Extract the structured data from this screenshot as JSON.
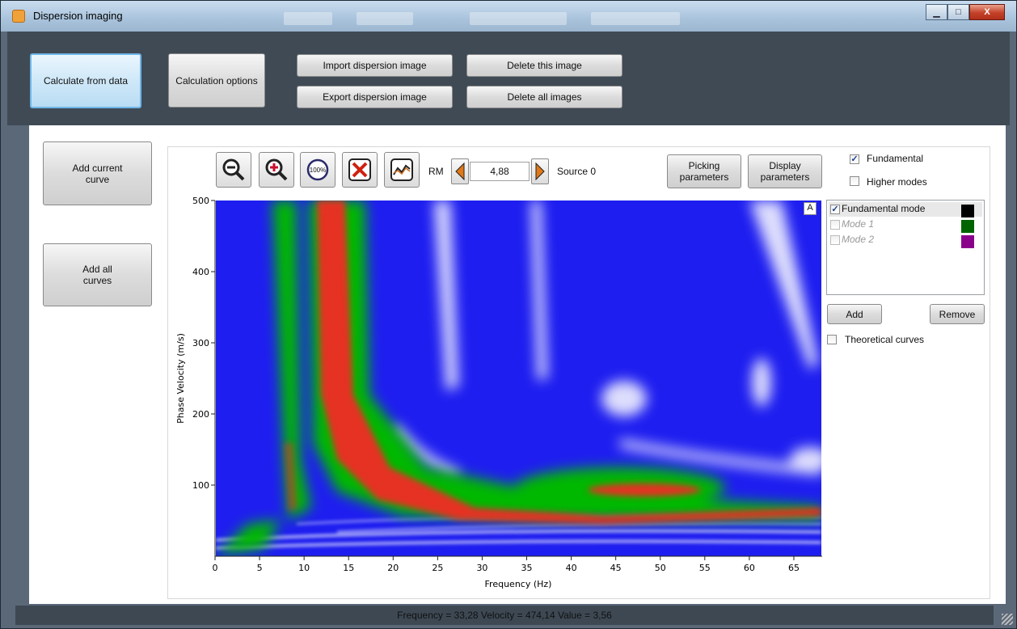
{
  "window": {
    "title": "Dispersion imaging",
    "controls": {
      "minimize": "▁",
      "maximize": "□",
      "close": "X"
    }
  },
  "toolbar": {
    "calculate": "Calculate from data",
    "calc_options": "Calculation options",
    "import": "Import dispersion image",
    "export": "Export dispersion image",
    "delete_this": "Delete this image",
    "delete_all": "Delete all images"
  },
  "left": {
    "add_current": "Add current curve",
    "add_all": "Add all curves"
  },
  "plot_toolbar": {
    "icons": [
      "zoom-out-icon",
      "zoom-in-icon",
      "zoom-100-icon",
      "clear-icon",
      "curve-icon"
    ],
    "icon_100_text": "100%",
    "rm_label": "RM",
    "rm_value": "4,88",
    "source_label": "Source 0",
    "picking": "Picking parameters",
    "display": "Display parameters"
  },
  "options": {
    "fundamental": {
      "label": "Fundamental",
      "checked": true
    },
    "higher_modes": {
      "label": "Higher modes",
      "checked": false
    },
    "theoretical": {
      "label": "Theoretical curves",
      "checked": false
    }
  },
  "modes_list": [
    {
      "label": "Fundamental mode",
      "checked": true,
      "color": "#000000"
    },
    {
      "label": "Mode 1",
      "checked": false,
      "color": "#006400"
    },
    {
      "label": "Mode 2",
      "checked": false,
      "color": "#8b008b"
    }
  ],
  "mode_buttons": {
    "add": "Add",
    "remove": "Remove"
  },
  "chart_data": {
    "type": "heatmap",
    "plot_label": "A",
    "xlabel": "Frequency (Hz)",
    "ylabel": "Phase Velocity (m/s)",
    "xlim": [
      0,
      68
    ],
    "ylim": [
      0,
      500
    ],
    "xticks": [
      0,
      5,
      10,
      15,
      20,
      25,
      30,
      35,
      40,
      45,
      50,
      55,
      60,
      65
    ],
    "yticks": [
      100,
      200,
      300,
      400,
      500
    ],
    "colormap": [
      "#1a1aff",
      "#00c000",
      "#e03020",
      "#ffffff"
    ]
  },
  "status": "Frequency = 33,28 Velocity = 474,14 Value = 3,56"
}
